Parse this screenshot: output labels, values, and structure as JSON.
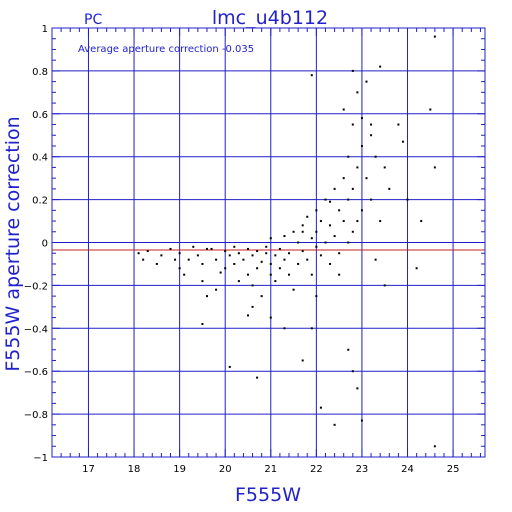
{
  "header": {
    "left_label": "PC",
    "title": "lmc_u4b112"
  },
  "annotation": "Average aperture correction  -0.035",
  "colors": {
    "grid": "#2020c8",
    "axis": "#2020c8",
    "text": "#2222cc",
    "zero_line": "#2020c8",
    "mean_line": "#c82020",
    "points": "#000000"
  },
  "chart_data": {
    "type": "scatter",
    "title": "lmc_u4b112",
    "xlabel": "F555W",
    "ylabel": "F555W aperture correction",
    "xlim": [
      16.2,
      25.7
    ],
    "ylim": [
      -1,
      1
    ],
    "xticks": [
      17,
      18,
      19,
      20,
      21,
      22,
      23,
      24,
      25
    ],
    "yticks": [
      -1,
      -0.8,
      -0.6,
      -0.4,
      -0.2,
      0,
      0.2,
      0.4,
      0.6,
      0.8,
      1
    ],
    "ytick_labels": [
      "−1",
      "−0.8",
      "−0.6",
      "−0.4",
      "−0.2",
      "0",
      "0.2",
      "0.4",
      "0.6",
      "0.8",
      "1"
    ],
    "grid": true,
    "hlines": [
      {
        "y": 0.0,
        "color": "#2020c8"
      },
      {
        "y": -0.035,
        "color": "#c82020"
      }
    ],
    "points": [
      [
        18.1,
        -0.05
      ],
      [
        18.2,
        -0.08
      ],
      [
        18.3,
        -0.04
      ],
      [
        18.5,
        -0.1
      ],
      [
        18.6,
        -0.06
      ],
      [
        18.8,
        -0.03
      ],
      [
        18.9,
        -0.08
      ],
      [
        19.0,
        -0.12
      ],
      [
        19.0,
        -0.05
      ],
      [
        19.1,
        -0.15
      ],
      [
        19.3,
        -0.02
      ],
      [
        19.4,
        -0.06
      ],
      [
        19.5,
        -0.1
      ],
      [
        19.5,
        -0.18
      ],
      [
        19.6,
        -0.25
      ],
      [
        19.7,
        -0.03
      ],
      [
        19.8,
        -0.22
      ],
      [
        19.8,
        -0.08
      ],
      [
        19.9,
        -0.14
      ],
      [
        20.0,
        -0.04
      ],
      [
        20.0,
        -0.12
      ],
      [
        20.1,
        -0.06
      ],
      [
        20.2,
        -0.02
      ],
      [
        20.2,
        -0.1
      ],
      [
        20.3,
        -0.18
      ],
      [
        20.3,
        -0.05
      ],
      [
        20.4,
        -0.08
      ],
      [
        20.5,
        -0.15
      ],
      [
        20.5,
        -0.03
      ],
      [
        20.6,
        -0.06
      ],
      [
        20.6,
        -0.2
      ],
      [
        20.7,
        -0.04
      ],
      [
        20.7,
        -0.12
      ],
      [
        20.8,
        -0.09
      ],
      [
        20.8,
        -0.25
      ],
      [
        20.9,
        -0.05
      ],
      [
        20.9,
        -0.02
      ],
      [
        21.0,
        -0.1
      ],
      [
        21.0,
        -0.15
      ],
      [
        21.0,
        0.02
      ],
      [
        21.1,
        -0.06
      ],
      [
        21.1,
        -0.18
      ],
      [
        21.2,
        -0.03
      ],
      [
        21.2,
        -0.12
      ],
      [
        21.3,
        -0.08
      ],
      [
        21.3,
        0.03
      ],
      [
        21.4,
        -0.15
      ],
      [
        21.4,
        -0.05
      ],
      [
        21.5,
        0.05
      ],
      [
        21.5,
        -0.22
      ],
      [
        21.6,
        0.0
      ],
      [
        21.6,
        -0.1
      ],
      [
        21.7,
        0.08
      ],
      [
        21.7,
        -0.04
      ],
      [
        21.8,
        0.12
      ],
      [
        21.8,
        -0.08
      ],
      [
        21.9,
        0.02
      ],
      [
        21.9,
        -0.15
      ],
      [
        22.0,
        0.15
      ],
      [
        22.0,
        0.05
      ],
      [
        22.0,
        -0.02
      ],
      [
        22.1,
        0.1
      ],
      [
        22.1,
        -0.06
      ],
      [
        22.2,
        0.2
      ],
      [
        22.2,
        0.0
      ],
      [
        22.3,
        0.08
      ],
      [
        22.3,
        -0.1
      ],
      [
        22.4,
        0.25
      ],
      [
        22.4,
        0.03
      ],
      [
        22.5,
        0.15
      ],
      [
        22.5,
        -0.05
      ],
      [
        22.6,
        0.3
      ],
      [
        22.6,
        0.1
      ],
      [
        22.7,
        0.4
      ],
      [
        22.7,
        0.2
      ],
      [
        22.7,
        0.0
      ],
      [
        22.8,
        0.55
      ],
      [
        22.8,
        0.25
      ],
      [
        22.8,
        0.05
      ],
      [
        22.9,
        0.7
      ],
      [
        22.9,
        0.35
      ],
      [
        22.9,
        0.1
      ],
      [
        23.0,
        0.45
      ],
      [
        23.0,
        0.15
      ],
      [
        23.1,
        0.75
      ],
      [
        23.1,
        0.3
      ],
      [
        23.2,
        0.5
      ],
      [
        23.2,
        0.2
      ],
      [
        23.3,
        0.4
      ],
      [
        23.4,
        0.1
      ],
      [
        23.5,
        0.35
      ],
      [
        23.6,
        0.25
      ],
      [
        23.8,
        0.55
      ],
      [
        24.0,
        0.2
      ],
      [
        24.3,
        0.1
      ],
      [
        19.5,
        -0.38
      ],
      [
        20.5,
        -0.34
      ],
      [
        20.7,
        -0.63
      ],
      [
        21.0,
        -0.35
      ],
      [
        21.3,
        -0.4
      ],
      [
        21.7,
        -0.55
      ],
      [
        21.9,
        -0.4
      ],
      [
        22.0,
        -0.25
      ],
      [
        22.1,
        -0.77
      ],
      [
        22.4,
        -0.85
      ],
      [
        22.7,
        -0.5
      ],
      [
        22.8,
        -0.6
      ],
      [
        23.0,
        -0.83
      ],
      [
        22.9,
        -0.68
      ],
      [
        24.6,
        -0.95
      ],
      [
        21.9,
        0.78
      ],
      [
        22.8,
        0.8
      ],
      [
        23.4,
        0.82
      ],
      [
        24.6,
        0.96
      ],
      [
        24.5,
        0.62
      ],
      [
        24.6,
        0.35
      ],
      [
        23.9,
        0.47
      ],
      [
        23.2,
        0.55
      ],
      [
        22.3,
        0.19
      ],
      [
        21.7,
        0.05
      ],
      [
        22.5,
        -0.15
      ],
      [
        23.3,
        -0.08
      ],
      [
        23.5,
        -0.2
      ],
      [
        24.2,
        -0.12
      ],
      [
        20.1,
        -0.58
      ],
      [
        20.6,
        -0.3
      ],
      [
        19.6,
        -0.03
      ],
      [
        19.2,
        -0.08
      ],
      [
        22.6,
        0.62
      ],
      [
        23.0,
        0.58
      ]
    ]
  }
}
